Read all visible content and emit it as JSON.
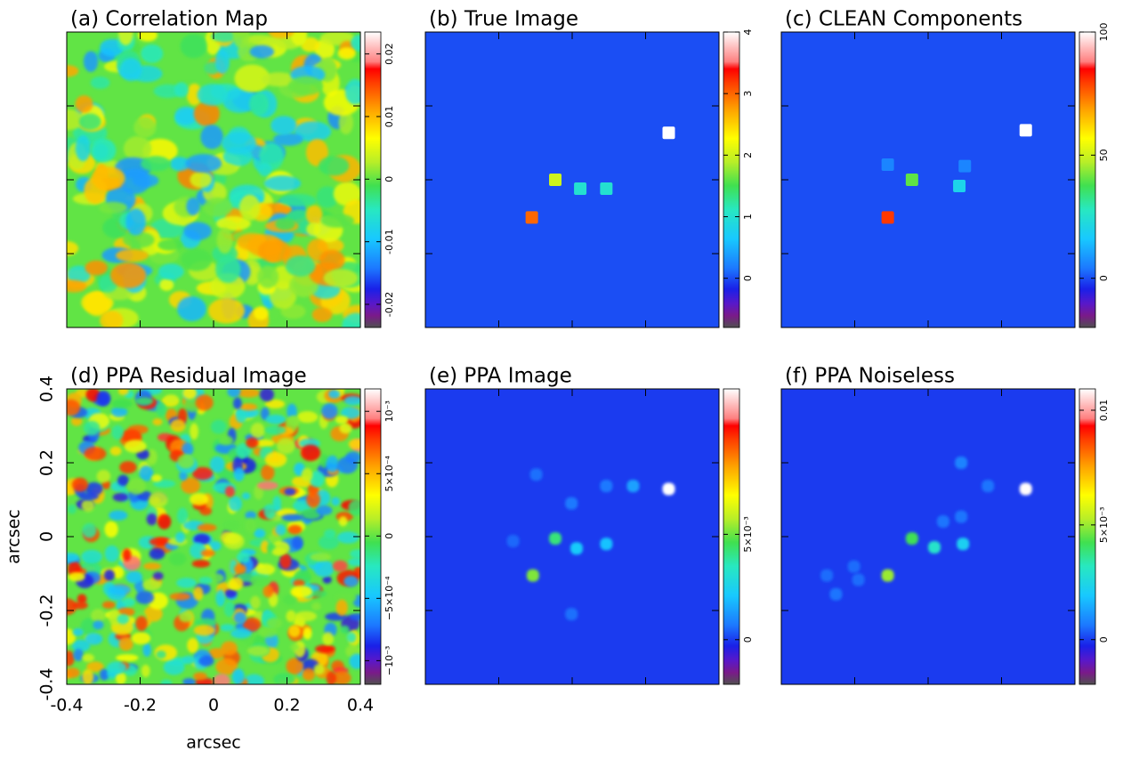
{
  "chart_data": [
    {
      "type": "image",
      "title": "(a) Correlation Map",
      "xlim": [
        -0.4,
        0.4
      ],
      "ylim": [
        -0.4,
        0.4
      ],
      "clim": [
        -0.0237,
        0.0235
      ],
      "cticks": [
        -0.02,
        -0.01,
        0,
        0.01,
        0.02
      ],
      "texture": true
    },
    {
      "type": "image",
      "title": "(b) True Image",
      "xlim": [
        -0.4,
        0.4
      ],
      "ylim": [
        -0.4,
        0.4
      ],
      "clim": [
        -0.8,
        4
      ],
      "cticks": [
        0,
        1,
        2,
        3,
        4
      ],
      "points": {
        "x": [
          0.263,
          -0.046,
          -0.11,
          0.022,
          0.093
        ],
        "y": [
          0.127,
          0,
          -0.102,
          -0.024,
          -0.024
        ],
        "values": [
          4,
          2,
          3,
          1,
          1
        ]
      }
    },
    {
      "type": "image",
      "title": "(c) CLEAN Components",
      "xlim": [
        -0.4,
        0.4
      ],
      "ylim": [
        -0.4,
        0.4
      ],
      "clim": [
        -20,
        100
      ],
      "cticks": [
        0,
        50,
        100
      ],
      "points": {
        "x": [
          0.266,
          -0.044,
          -0.11,
          0.085,
          -0.11,
          0.1
        ],
        "y": [
          0.134,
          0,
          -0.102,
          -0.017,
          0.041,
          0.037
        ],
        "values": [
          100,
          40,
          80,
          20,
          6,
          6
        ]
      }
    },
    {
      "type": "image",
      "title": "(d) PPA Residual Image",
      "xlim": [
        -0.4,
        0.4
      ],
      "ylim": [
        -0.4,
        0.4
      ],
      "xticks": [
        -0.4,
        -0.2,
        0,
        0.2,
        0.4
      ],
      "yticks": [
        -0.4,
        -0.2,
        0,
        0.2,
        0.4
      ],
      "xlabel": "arcsec",
      "ylabel": "arcsec",
      "clim": [
        -0.00119,
        0.00118
      ],
      "cticks": [
        {
          "value": -0.001,
          "label": "−10⁻³"
        },
        {
          "value": -0.0005,
          "label": "−5×10⁻⁴"
        },
        0,
        {
          "value": 0.0005,
          "label": "5×10⁻⁴"
        },
        {
          "value": 0.001,
          "label": "10⁻³"
        }
      ],
      "texture": true
    },
    {
      "type": "image",
      "title": "(e) PPA Image",
      "xlim": [
        -0.4,
        0.4
      ],
      "ylim": [
        -0.4,
        0.4
      ],
      "clim": [
        -0.00212,
        0.0119
      ],
      "cticks": [
        0,
        {
          "value": 0.005,
          "label": "5×10⁻³"
        }
      ],
      "points": {
        "x": [
          0.263,
          -0.046,
          -0.107,
          0.012,
          0.093,
          0.166,
          -0.002,
          -0.098,
          0.093,
          -0.002,
          -0.161
        ],
        "y": [
          0.129,
          -0.005,
          -0.105,
          -0.032,
          -0.02,
          0.137,
          0.09,
          0.168,
          0.137,
          -0.21,
          -0.012
        ],
        "values": [
          0.0119,
          0.0042,
          0.0052,
          0.0022,
          0.002,
          0.0014,
          0.0007,
          0.0006,
          0.0007,
          0.0006,
          0.0005
        ]
      }
    },
    {
      "type": "image",
      "title": "(f) PPA Noiseless",
      "xlim": [
        -0.4,
        0.4
      ],
      "ylim": [
        -0.4,
        0.4
      ],
      "clim": [
        -0.00195,
        0.01093
      ],
      "cticks": [
        0,
        {
          "value": 0.005,
          "label": "5×10⁻³"
        },
        0.01
      ],
      "points": {
        "x": [
          0.266,
          -0.044,
          -0.11,
          0.017,
          0.095,
          0.09,
          0.163,
          0.041,
          0.09,
          -0.251,
          -0.276,
          -0.202,
          -0.19
        ],
        "y": [
          0.129,
          -0.005,
          -0.105,
          -0.029,
          -0.02,
          0.2,
          0.137,
          0.041,
          0.054,
          -0.156,
          -0.105,
          -0.081,
          -0.117
        ],
        "values": [
          0.0109,
          0.0042,
          0.005,
          0.003,
          0.0022,
          0.0008,
          0.0006,
          0.0006,
          0.0006,
          0.0006,
          0.0005,
          0.0005,
          0.0005
        ]
      }
    }
  ]
}
